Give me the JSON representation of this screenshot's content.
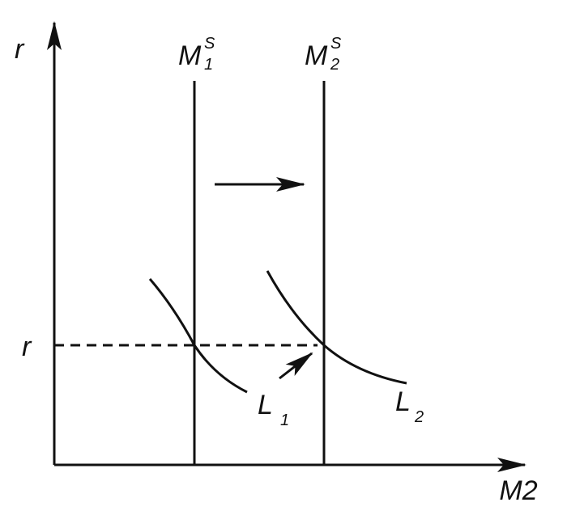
{
  "axes": {
    "y_label": "r",
    "x_label": "M2"
  },
  "supply_lines": [
    {
      "base": "M",
      "sub": "1",
      "sup": "S"
    },
    {
      "base": "M",
      "sub": "2",
      "sup": "S"
    }
  ],
  "demand_curves": [
    {
      "base": "L",
      "sub": "1"
    },
    {
      "base": "L",
      "sub": "2"
    }
  ],
  "equilibrium_rate": {
    "label": "r"
  }
}
